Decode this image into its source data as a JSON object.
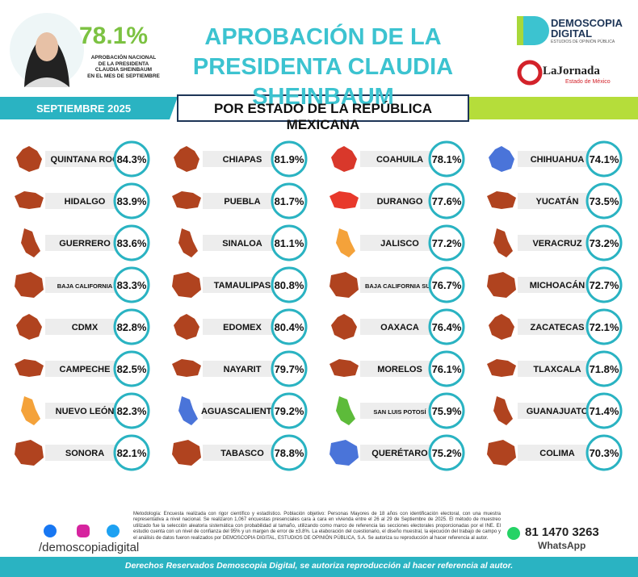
{
  "header": {
    "national_value": "78.1%",
    "national_caption": [
      "APROBACIÓN NACIONAL",
      "DE LA PRESIDENTA",
      "CLAUDIA SHEINBAUM",
      "EN EL MES DE SEPTIEMBRE"
    ],
    "title": [
      "APROBACIÓN DE LA",
      "PRESIDENTA CLAUDIA SHEINBAUM"
    ],
    "brand": [
      "DEMOSCOPIA",
      "DIGITAL"
    ],
    "brand_tagline": "ESTUDIOS DE OPINIÓN PÚBLICA",
    "partner": "LaJornada",
    "partner_tagline": "Estado de México"
  },
  "band": {
    "date": "SEPTIEMBRE 2025",
    "subtitle": "POR ESTADO DE LA REPÚBLICA MEXICANA"
  },
  "states": [
    {
      "name": "QUINTANA ROO",
      "value": "84.3%",
      "color": "#b0431f"
    },
    {
      "name": "HIDALGO",
      "value": "83.9%",
      "color": "#b0431f"
    },
    {
      "name": "GUERRERO",
      "value": "83.6%",
      "color": "#b0431f"
    },
    {
      "name": "BAJA CALIFORNIA",
      "value": "83.3%",
      "color": "#b0431f"
    },
    {
      "name": "CDMX",
      "value": "82.8%",
      "color": "#b0431f"
    },
    {
      "name": "CAMPECHE",
      "value": "82.5%",
      "color": "#b0431f"
    },
    {
      "name": "NUEVO LEÓN",
      "value": "82.3%",
      "color": "#f4a23a"
    },
    {
      "name": "SONORA",
      "value": "82.1%",
      "color": "#b0431f"
    },
    {
      "name": "CHIAPAS",
      "value": "81.9%",
      "color": "#b0431f"
    },
    {
      "name": "PUEBLA",
      "value": "81.7%",
      "color": "#b0431f"
    },
    {
      "name": "SINALOA",
      "value": "81.1%",
      "color": "#b0431f"
    },
    {
      "name": "TAMAULIPAS",
      "value": "80.8%",
      "color": "#b0431f"
    },
    {
      "name": "EDOMEX",
      "value": "80.4%",
      "color": "#b0431f"
    },
    {
      "name": "NAYARIT",
      "value": "79.7%",
      "color": "#b0431f"
    },
    {
      "name": "AGUASCALIENTES",
      "value": "79.2%",
      "color": "#4a74d9"
    },
    {
      "name": "TABASCO",
      "value": "78.8%",
      "color": "#b0431f"
    },
    {
      "name": "COAHUILA",
      "value": "78.1%",
      "color": "#d9382b"
    },
    {
      "name": "DURANGO",
      "value": "77.6%",
      "color": "#e8392b"
    },
    {
      "name": "JALISCO",
      "value": "77.2%",
      "color": "#f4a23a"
    },
    {
      "name": "BAJA CALIFORNIA SUR",
      "value": "76.7%",
      "color": "#b0431f"
    },
    {
      "name": "OAXACA",
      "value": "76.4%",
      "color": "#b0431f"
    },
    {
      "name": "MORELOS",
      "value": "76.1%",
      "color": "#b0431f"
    },
    {
      "name": "SAN LUIS POTOSÍ",
      "value": "75.9%",
      "color": "#5dbb3a"
    },
    {
      "name": "QUERÉTARO",
      "value": "75.2%",
      "color": "#4a74d9"
    },
    {
      "name": "CHIHUAHUA",
      "value": "74.1%",
      "color": "#4a74d9"
    },
    {
      "name": "YUCATÁN",
      "value": "73.5%",
      "color": "#b0431f"
    },
    {
      "name": "VERACRUZ",
      "value": "73.2%",
      "color": "#b0431f"
    },
    {
      "name": "MICHOACÁN",
      "value": "72.7%",
      "color": "#b0431f"
    },
    {
      "name": "ZACATECAS",
      "value": "72.1%",
      "color": "#b0431f"
    },
    {
      "name": "TLAXCALA",
      "value": "71.8%",
      "color": "#b0431f"
    },
    {
      "name": "GUANAJUATO",
      "value": "71.4%",
      "color": "#b0431f"
    },
    {
      "name": "COLIMA",
      "value": "70.3%",
      "color": "#b0431f"
    }
  ],
  "footer": {
    "methodology": "Metodología: Encuesta realizada con rigor científico y estadístico. Población objetivo: Personas Mayores de 18 años con identificación electoral, con una muestra representativa a nivel nacional. Se realizaron 1,067 encuestas presenciales cara a cara en vivienda entre el 26 al 29 de Septiembre de 2025. El método de muestreo utilizado fue la selección aleatoria sistemática con probabilidad al tamaño, utilizando como marco de referencia las secciones electorales proporcionadas por el INE. El estudio cuenta con un nivel de confianza del 95% y un margen de error de ±3.8%. La elaboración del cuestionario, el diseño muestral, la ejecución del trabajo de campo y el análisis de datos fueron realizados por DEMOSCOPIA DIGITAL, ESTUDIOS DE OPINIÓN PÚBLICA, S.A. Se autoriza su reproducción al hacer referencia al autor.",
    "social": "/demoscopiadigital",
    "phone": "81 1470 3263",
    "whatsapp": "WhatsApp",
    "rights": "Derechos Reservados Demoscopia Digital, se autoriza reproducción al hacer referencia al autor."
  }
}
